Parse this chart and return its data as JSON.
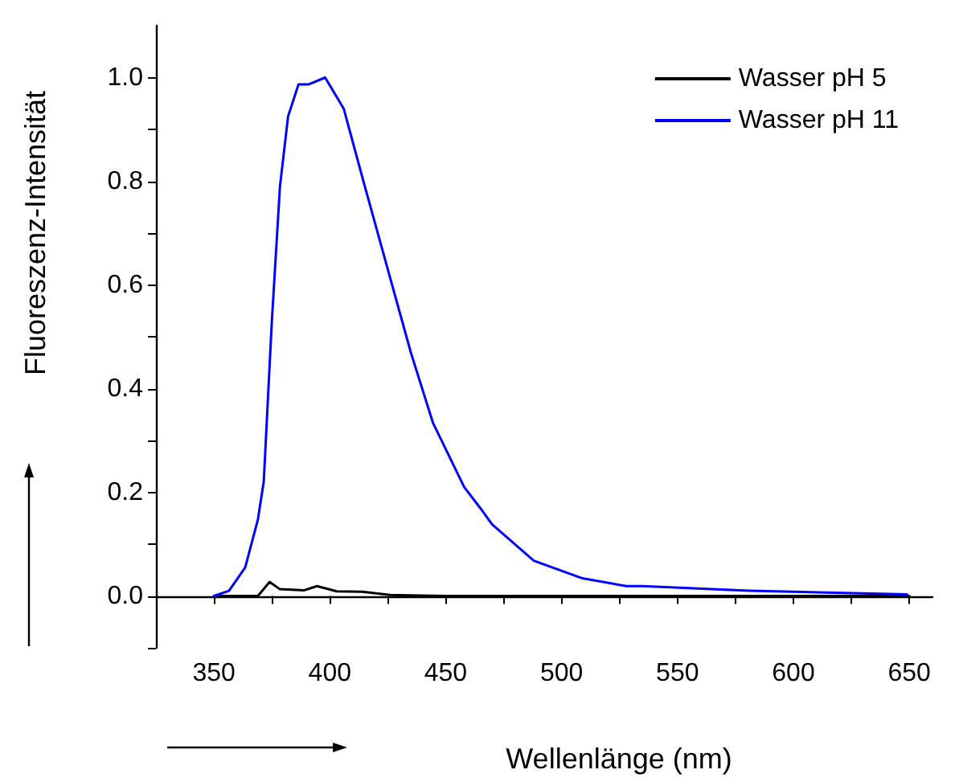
{
  "chart_data": {
    "type": "line",
    "xlabel": "Wellenlänge (nm)",
    "ylabel": "Fluoreszenz-Intensität",
    "xlim": [
      325,
      660
    ],
    "xticks": [
      {
        "value": 325,
        "label": null
      },
      350,
      {
        "value": 375,
        "label": null
      },
      400,
      {
        "value": 425,
        "label": null
      },
      450,
      {
        "value": 475,
        "label": null
      },
      500,
      {
        "value": 525,
        "label": null
      },
      550,
      {
        "value": 575,
        "label": null
      },
      600,
      {
        "value": 625,
        "label": null
      },
      650
    ],
    "ylim": [
      -0.1,
      1.1
    ],
    "yticks": [
      {
        "value": -0.1,
        "label": null
      },
      {
        "value": 0,
        "label": "0.0"
      },
      {
        "value": 0.1,
        "label": null
      },
      {
        "value": 0.2,
        "label": "0.2"
      },
      {
        "value": 0.3,
        "label": null
      },
      {
        "value": 0.4,
        "label": "0.4"
      },
      {
        "value": 0.5,
        "label": null
      },
      {
        "value": 0.6,
        "label": "0.6"
      },
      {
        "value": 0.7,
        "label": null
      },
      {
        "value": 0.8,
        "label": "0.8"
      },
      {
        "value": 0.9,
        "label": null
      },
      {
        "value": 1,
        "label": "1.0"
      }
    ],
    "grid": false,
    "legend": "top right",
    "marker": "none",
    "line_style": "solid",
    "series": [
      {
        "name": "Wasser pH 5",
        "color": "#000000",
        "x": [
          350,
          369,
          374,
          378.5,
          389,
          394.5,
          403,
          414,
          426,
          450,
          500,
          550,
          600,
          650
        ],
        "values": [
          0,
          0,
          0.027,
          0.013,
          0.011,
          0.019,
          0.009,
          0.008,
          0.002,
          0,
          0,
          0,
          0,
          0
        ]
      },
      {
        "name": "Wasser pH 11",
        "color": "#0000ff",
        "x": [
          350,
          356.5,
          363.5,
          369,
          371.5,
          375,
          378.5,
          382,
          386.5,
          391,
          398,
          406,
          414.5,
          426,
          435,
          444.5,
          458,
          465,
          470,
          488,
          509,
          528,
          535,
          581,
          600,
          649
        ],
        "values": [
          0,
          0.01,
          0.055,
          0.148,
          0.22,
          0.53,
          0.79,
          0.925,
          0.987,
          0.987,
          1,
          0.94,
          0.8,
          0.614,
          0.469,
          0.334,
          0.21,
          0.169,
          0.138,
          0.068,
          0.034,
          0.019,
          0.019,
          0.01,
          0.008,
          0.003
        ]
      }
    ]
  }
}
